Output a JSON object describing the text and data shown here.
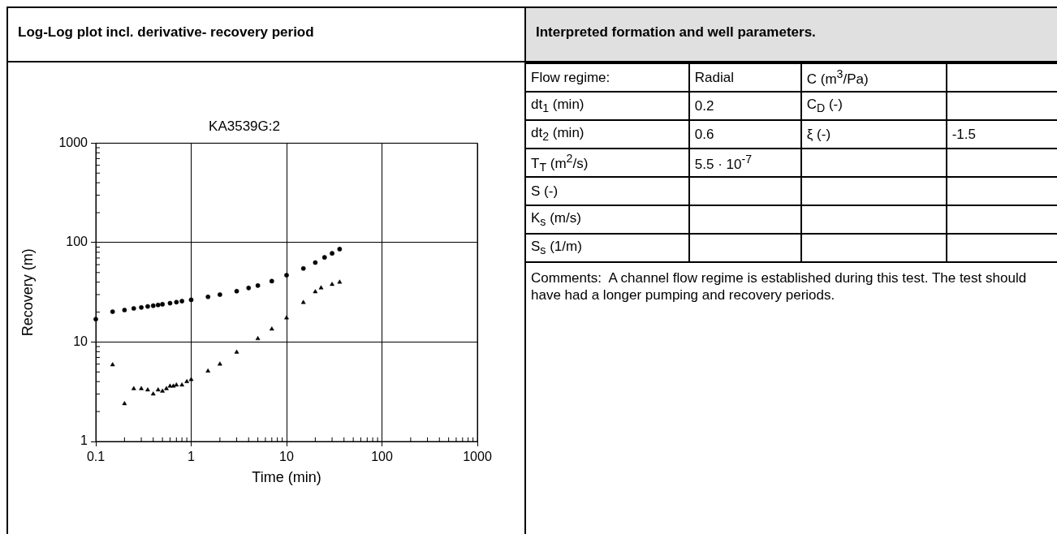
{
  "chart_data": [
    {
      "type": "scatter",
      "title": "Log-Log plot incl. derivative- recovery period",
      "subtitle": "KA3539G:2",
      "xlabel": "Time (min)",
      "ylabel": "Recovery (m)",
      "log": "xy",
      "grid": true,
      "xlim": [
        0.1,
        1000
      ],
      "ylim": [
        1,
        1000
      ],
      "xticks": [
        0.1,
        {
          "value": 0.2,
          "label": null
        },
        {
          "value": 0.3,
          "label": null
        },
        {
          "value": 0.4,
          "label": null
        },
        {
          "value": 0.5,
          "label": null
        },
        {
          "value": 0.6,
          "label": null
        },
        {
          "value": 0.7,
          "label": null
        },
        {
          "value": 0.8,
          "label": null
        },
        {
          "value": 0.9,
          "label": null
        },
        1,
        {
          "value": 2,
          "label": null
        },
        {
          "value": 3,
          "label": null
        },
        {
          "value": 4,
          "label": null
        },
        {
          "value": 5,
          "label": null
        },
        {
          "value": 6,
          "label": null
        },
        {
          "value": 7,
          "label": null
        },
        {
          "value": 8,
          "label": null
        },
        {
          "value": 9,
          "label": null
        },
        10,
        {
          "value": 20,
          "label": null
        },
        {
          "value": 30,
          "label": null
        },
        {
          "value": 40,
          "label": null
        },
        {
          "value": 50,
          "label": null
        },
        {
          "value": 60,
          "label": null
        },
        {
          "value": 70,
          "label": null
        },
        {
          "value": 80,
          "label": null
        },
        {
          "value": 90,
          "label": null
        },
        100,
        {
          "value": 200,
          "label": null
        },
        {
          "value": 300,
          "label": null
        },
        {
          "value": 400,
          "label": null
        },
        {
          "value": 500,
          "label": null
        },
        {
          "value": 600,
          "label": null
        },
        {
          "value": 700,
          "label": null
        },
        {
          "value": 800,
          "label": null
        },
        {
          "value": 900,
          "label": null
        },
        1000
      ],
      "yticks": [
        1,
        {
          "value": 2,
          "label": null
        },
        {
          "value": 3,
          "label": null
        },
        {
          "value": 4,
          "label": null
        },
        {
          "value": 5,
          "label": null
        },
        {
          "value": 6,
          "label": null
        },
        {
          "value": 7,
          "label": null
        },
        {
          "value": 8,
          "label": null
        },
        {
          "value": 9,
          "label": null
        },
        10,
        {
          "value": 20,
          "label": null
        },
        {
          "value": 30,
          "label": null
        },
        {
          "value": 40,
          "label": null
        },
        {
          "value": 50,
          "label": null
        },
        {
          "value": 60,
          "label": null
        },
        {
          "value": 70,
          "label": null
        },
        {
          "value": 80,
          "label": null
        },
        {
          "value": 90,
          "label": null
        },
        100,
        {
          "value": 200,
          "label": null
        },
        {
          "value": 300,
          "label": null
        },
        {
          "value": 400,
          "label": null
        },
        {
          "value": 500,
          "label": null
        },
        {
          "value": 600,
          "label": null
        },
        {
          "value": 700,
          "label": null
        },
        {
          "value": 800,
          "label": null
        },
        {
          "value": 900,
          "label": null
        },
        1000
      ],
      "series": [
        {
          "color": "#000000",
          "marker": "circle",
          "x": [
            0.1,
            0.15,
            0.2,
            0.25,
            0.3,
            0.35,
            0.4,
            0.45,
            0.5,
            0.6,
            0.7,
            0.8,
            1,
            1.5,
            2,
            3,
            4,
            5,
            7,
            10,
            15,
            20,
            25,
            30,
            36
          ],
          "values": [
            17,
            20.2,
            21,
            21.8,
            22.3,
            22.8,
            23.2,
            23.6,
            24,
            24.6,
            25.2,
            25.8,
            26.6,
            28.5,
            30,
            32.5,
            35,
            37,
            41,
            47,
            55,
            63,
            71,
            78,
            86
          ]
        },
        {
          "color": "#000000",
          "marker": "triangle",
          "x": [
            0.15,
            0.2,
            0.25,
            0.3,
            0.35,
            0.4,
            0.45,
            0.5,
            0.55,
            0.6,
            0.65,
            0.7,
            0.8,
            0.9,
            1,
            1.5,
            2,
            3,
            5,
            7,
            10,
            15,
            20,
            23,
            30,
            36
          ],
          "values": [
            5.9,
            2.4,
            3.4,
            3.4,
            3.3,
            3.0,
            3.3,
            3.2,
            3.4,
            3.6,
            3.6,
            3.7,
            3.7,
            4.0,
            4.2,
            5.1,
            6.0,
            7.9,
            10.8,
            13.5,
            17.5,
            25,
            32,
            35,
            38,
            40
          ]
        }
      ]
    },
    {
      "type": "other",
      "title": "Interpreted formation and well parameters.",
      "cell_labels": [
        [
          "Flow regime:",
          "Radial",
          "C (m$^{3}$/Pa)",
          null
        ],
        [
          "dt$_{1}$ (min)",
          "0.2",
          "C$_{D}$ (-)",
          null
        ],
        [
          "dt$_{2}$ (min)",
          "0.6",
          "ξ (-)",
          "-1.5"
        ],
        [
          "T$_{T}$ (m$^{2}$/s)",
          "5.5 · 10$^{-7}$",
          null,
          null
        ],
        [
          "S (-)",
          null,
          null,
          null
        ],
        [
          "K$_{s}$ (m/s)",
          null,
          null,
          null
        ],
        [
          "S$_{s}$ (1/m)",
          null,
          null,
          null
        ]
      ],
      "annotations": [
        "Comments:  A channel flow regime is established during this test. The test should have had a longer pumping and recovery periods."
      ]
    }
  ]
}
